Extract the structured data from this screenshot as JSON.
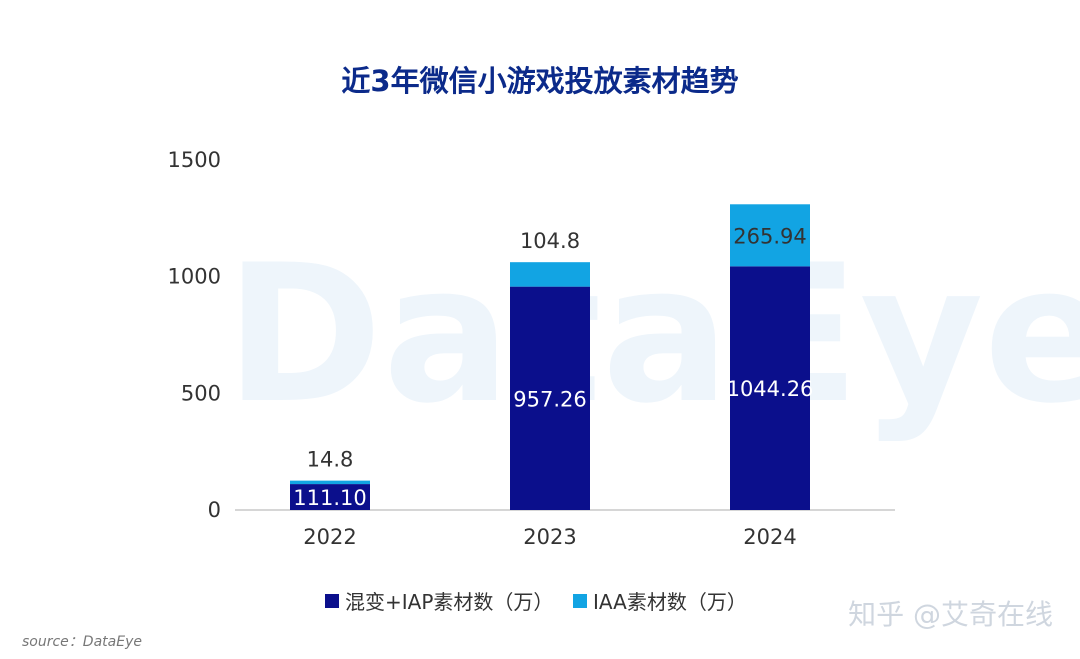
{
  "chart_data": {
    "type": "bar",
    "stacked": true,
    "title": "近3年微信小游戏投放素材趋势",
    "categories": [
      "2022",
      "2023",
      "2024"
    ],
    "series": [
      {
        "name": "混变+IAP素材数（万）",
        "values": [
          111.1,
          957.26,
          1044.26
        ],
        "labels": [
          "111.10",
          "957.26",
          "1044.26"
        ],
        "color": "#0b0f8c"
      },
      {
        "name": "IAA素材数（万）",
        "values": [
          14.8,
          104.8,
          265.94
        ],
        "labels": [
          "14.8",
          "104.8",
          "265.94"
        ],
        "color": "#12a4e3"
      }
    ],
    "ylim": [
      0,
      1500
    ],
    "yticks": [
      0,
      500,
      1000,
      1500
    ],
    "xlabel": "",
    "ylabel": "",
    "grid": false,
    "legend": "bottom"
  },
  "source": "source：DataEye",
  "background_watermark": "DataEye",
  "watermark": "知乎 @艾奇在线"
}
